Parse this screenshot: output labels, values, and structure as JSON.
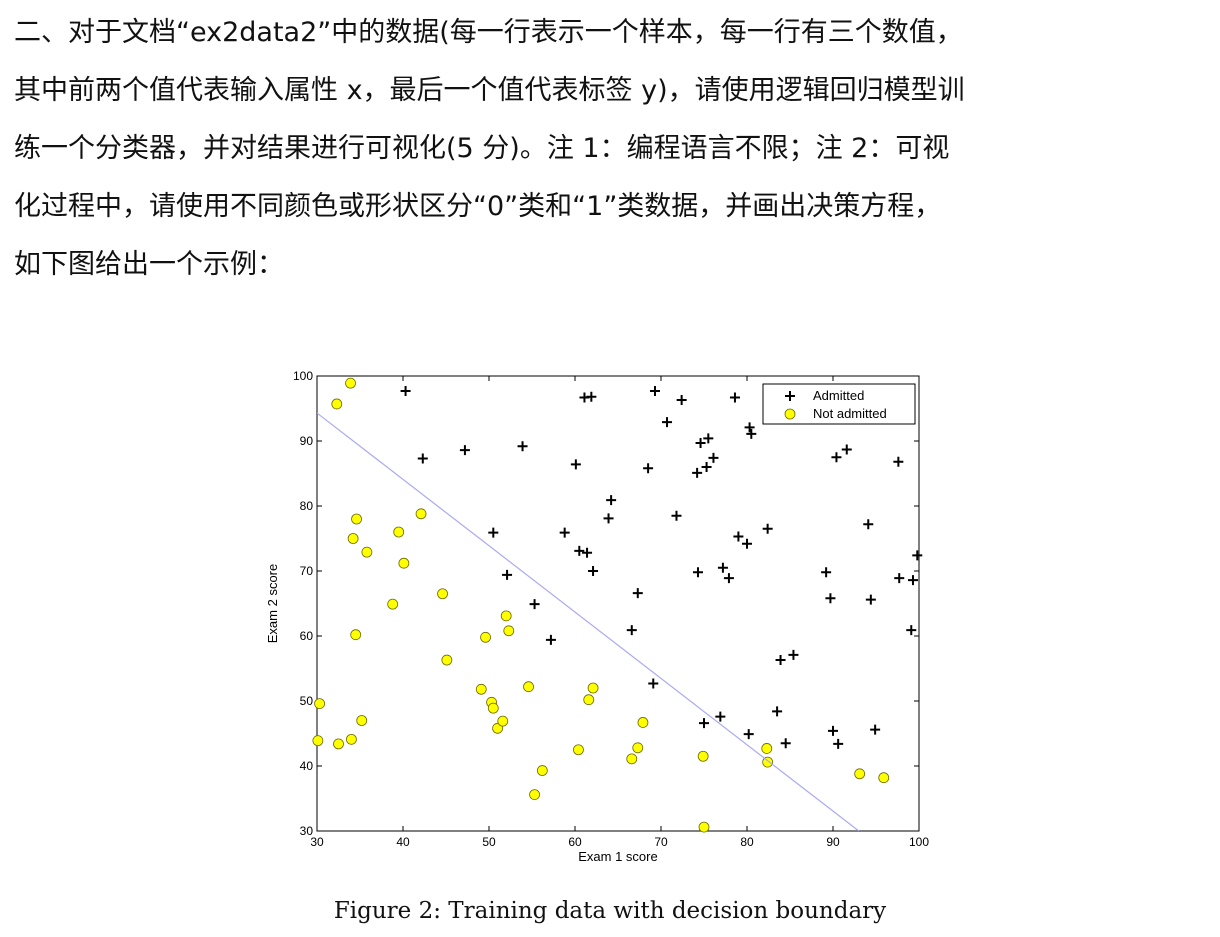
{
  "question": {
    "lines": [
      "二、对于文档“ex2data2”中的数据(每一行表示一个样本，每一行有三个数值，",
      "其中前两个值代表输入属性 x，最后一个值代表标签 y)，请使用逻辑回归模型训",
      "练一个分类器，并对结果进行可视化(5 分)。注 1：编程语言不限；注 2：可视",
      "化过程中，请使用不同颜色或形状区分“0”类和“1”类数据，并画出决策方程，",
      "如下图给出一个示例："
    ]
  },
  "caption": "Figure 2: Training data with decision boundary",
  "chart_data": {
    "type": "scatter",
    "title": "",
    "xlabel": "Exam 1 score",
    "ylabel": "Exam 2 score",
    "xlim": [
      30,
      100
    ],
    "ylim": [
      30,
      100
    ],
    "xticks": [
      30,
      40,
      50,
      60,
      70,
      80,
      90,
      100
    ],
    "yticks": [
      30,
      40,
      50,
      60,
      70,
      80,
      90,
      100
    ],
    "grid": false,
    "legend_position": "top-right",
    "series": [
      {
        "name": "Admitted",
        "marker": "plus",
        "color": "#000000",
        "points": [
          [
            40.3,
            97.7
          ],
          [
            42.3,
            87.3
          ],
          [
            47.2,
            88.6
          ],
          [
            50.5,
            75.9
          ],
          [
            52.1,
            69.4
          ],
          [
            53.9,
            89.2
          ],
          [
            55.3,
            64.9
          ],
          [
            57.2,
            59.4
          ],
          [
            58.8,
            75.9
          ],
          [
            60.1,
            86.4
          ],
          [
            60.5,
            73.1
          ],
          [
            61.1,
            96.7
          ],
          [
            61.4,
            72.8
          ],
          [
            61.9,
            96.8
          ],
          [
            62.1,
            70.0
          ],
          [
            63.9,
            78.1
          ],
          [
            64.2,
            80.9
          ],
          [
            66.6,
            60.9
          ],
          [
            67.3,
            66.6
          ],
          [
            68.5,
            85.8
          ],
          [
            69.1,
            52.7
          ],
          [
            69.3,
            97.7
          ],
          [
            70.7,
            92.9
          ],
          [
            71.8,
            78.5
          ],
          [
            72.4,
            96.3
          ],
          [
            74.2,
            85.1
          ],
          [
            74.3,
            69.8
          ],
          [
            74.6,
            89.7
          ],
          [
            75.0,
            46.6
          ],
          [
            75.3,
            86.0
          ],
          [
            75.5,
            90.4
          ],
          [
            76.1,
            87.4
          ],
          [
            76.9,
            47.6
          ],
          [
            77.2,
            70.5
          ],
          [
            77.9,
            68.9
          ],
          [
            78.6,
            96.7
          ],
          [
            79.0,
            75.3
          ],
          [
            80.0,
            74.2
          ],
          [
            80.2,
            44.9
          ],
          [
            80.3,
            92.1
          ],
          [
            80.5,
            91.1
          ],
          [
            82.4,
            76.5
          ],
          [
            83.5,
            48.4
          ],
          [
            83.9,
            56.3
          ],
          [
            84.5,
            43.5
          ],
          [
            85.4,
            57.1
          ],
          [
            89.2,
            69.8
          ],
          [
            89.7,
            65.8
          ],
          [
            90.0,
            45.4
          ],
          [
            90.4,
            87.5
          ],
          [
            90.6,
            43.4
          ],
          [
            91.6,
            88.7
          ],
          [
            94.1,
            77.2
          ],
          [
            94.4,
            65.6
          ],
          [
            94.9,
            45.6
          ],
          [
            97.6,
            86.8
          ],
          [
            97.7,
            68.9
          ],
          [
            99.1,
            60.9
          ],
          [
            99.3,
            68.6
          ],
          [
            99.8,
            72.4
          ]
        ]
      },
      {
        "name": "Not admitted",
        "marker": "circle",
        "color": "#ffff00",
        "points": [
          [
            30.1,
            43.9
          ],
          [
            30.3,
            49.6
          ],
          [
            32.3,
            95.7
          ],
          [
            32.5,
            43.4
          ],
          [
            33.9,
            98.9
          ],
          [
            34.0,
            44.1
          ],
          [
            34.2,
            75.0
          ],
          [
            34.5,
            60.2
          ],
          [
            34.6,
            78.0
          ],
          [
            35.2,
            47.0
          ],
          [
            35.8,
            72.9
          ],
          [
            38.8,
            64.9
          ],
          [
            39.5,
            76.0
          ],
          [
            40.1,
            71.2
          ],
          [
            42.1,
            78.8
          ],
          [
            44.6,
            66.5
          ],
          [
            45.1,
            56.3
          ],
          [
            49.1,
            51.8
          ],
          [
            49.6,
            59.8
          ],
          [
            50.3,
            49.8
          ],
          [
            50.5,
            48.9
          ],
          [
            51.0,
            45.8
          ],
          [
            51.6,
            46.9
          ],
          [
            52.0,
            63.1
          ],
          [
            52.3,
            60.8
          ],
          [
            54.6,
            52.2
          ],
          [
            55.3,
            35.6
          ],
          [
            56.2,
            39.3
          ],
          [
            60.4,
            42.5
          ],
          [
            61.6,
            50.2
          ],
          [
            62.1,
            52.0
          ],
          [
            66.6,
            41.1
          ],
          [
            67.3,
            42.8
          ],
          [
            67.9,
            46.7
          ],
          [
            74.9,
            41.5
          ],
          [
            75.0,
            30.6
          ],
          [
            82.3,
            42.7
          ],
          [
            82.4,
            40.6
          ],
          [
            93.1,
            38.8
          ],
          [
            95.9,
            38.2
          ]
        ]
      },
      {
        "name": "",
        "type": "line",
        "color": "#a9a9f5",
        "points": [
          [
            30,
            94.3
          ],
          [
            93,
            30
          ]
        ]
      }
    ]
  }
}
